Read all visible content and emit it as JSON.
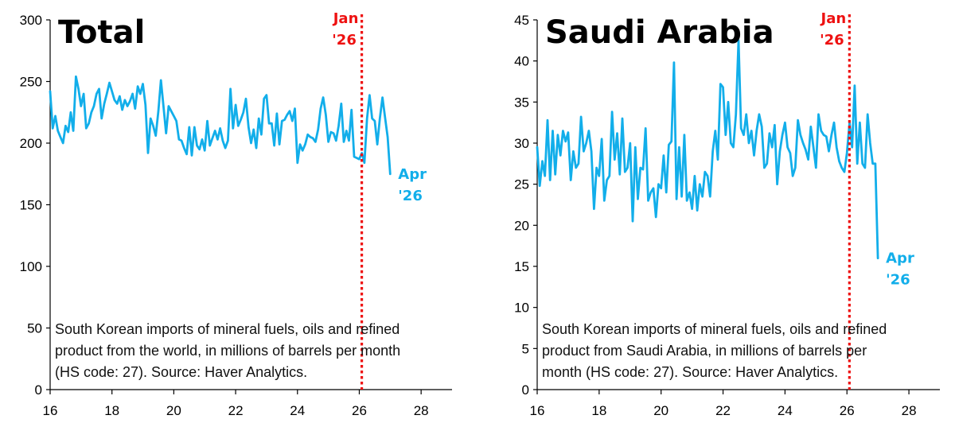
{
  "colors": {
    "series": "#12aeea",
    "marker": "#ee1111",
    "axis": "#000000"
  },
  "chart_data": [
    {
      "type": "line",
      "title": "Total",
      "xlabel": "",
      "ylabel": "",
      "xlim": [
        16,
        29
      ],
      "ylim": [
        0,
        300
      ],
      "xticks": [
        16,
        18,
        20,
        22,
        24,
        26,
        28
      ],
      "yticks": [
        0,
        50,
        100,
        150,
        200,
        250,
        300
      ],
      "grid": false,
      "vline": {
        "x": 26.08,
        "label_line1": "Jan",
        "label_line2": "'26"
      },
      "end_label": {
        "line1": "Apr",
        "line2": "'26"
      },
      "note_lines": [
        "South Korean imports of mineral fuels, oils and refined",
        "product from the world, in millions of barrels per month",
        "(HS code: 27). Source: Haver Analytics."
      ],
      "series": [
        {
          "x_start": 16.0,
          "x_step": 0.08333,
          "values": [
            242,
            212,
            222,
            210,
            205,
            200,
            214,
            209,
            225,
            210,
            254,
            244,
            230,
            240,
            212,
            216,
            225,
            230,
            240,
            244,
            220,
            232,
            240,
            249,
            242,
            235,
            232,
            238,
            227,
            235,
            230,
            234,
            240,
            228,
            246,
            240,
            248,
            231,
            192,
            220,
            214,
            206,
            226,
            251,
            230,
            208,
            230,
            226,
            222,
            218,
            203,
            202,
            196,
            191,
            213,
            190,
            213,
            198,
            195,
            203,
            194,
            218,
            198,
            204,
            210,
            203,
            212,
            202,
            196,
            202,
            244,
            212,
            231,
            214,
            219,
            225,
            236,
            213,
            200,
            211,
            196,
            220,
            207,
            236,
            239,
            216,
            216,
            198,
            224,
            199,
            218,
            219,
            223,
            226,
            218,
            228,
            184,
            199,
            194,
            199,
            207,
            205,
            204,
            201,
            211,
            228,
            237,
            223,
            201,
            209,
            208,
            202,
            214,
            232,
            201,
            210,
            202,
            227,
            189,
            188,
            187,
            192,
            184,
            220,
            239,
            220,
            218,
            199,
            220,
            237,
            221,
            205,
            175
          ]
        }
      ]
    },
    {
      "type": "line",
      "title": "Saudi Arabia",
      "xlabel": "",
      "ylabel": "",
      "xlim": [
        16,
        29
      ],
      "ylim": [
        0,
        45
      ],
      "xticks": [
        16,
        18,
        20,
        22,
        24,
        26,
        28
      ],
      "yticks": [
        0,
        5,
        10,
        15,
        20,
        25,
        30,
        35,
        40,
        45
      ],
      "grid": false,
      "vline": {
        "x": 26.08,
        "label_line1": "Jan",
        "label_line2": "'26"
      },
      "end_label": {
        "line1": "Apr",
        "line2": "'26"
      },
      "note_lines": [
        "South Korean imports of mineral fuels, oils and refined",
        "product from Saudi Arabia, in millions of barrels per",
        "month (HS code: 27). Source: Haver Analytics."
      ],
      "series": [
        {
          "x_start": 16.0,
          "x_step": 0.08333,
          "values": [
            29.5,
            24.8,
            27.8,
            26.0,
            32.8,
            25.5,
            31.5,
            26.2,
            31.0,
            28.5,
            31.5,
            30.2,
            31.3,
            25.5,
            29.0,
            27.0,
            27.5,
            33.2,
            29.0,
            30.0,
            31.5,
            29.0,
            22.0,
            27.0,
            26.0,
            30.5,
            23.0,
            25.5,
            26.0,
            33.8,
            28.0,
            31.2,
            26.2,
            33.0,
            26.5,
            27.0,
            30.0,
            20.5,
            29.5,
            23.2,
            27.0,
            26.8,
            31.8,
            23.0,
            24.0,
            24.5,
            21.0,
            25.0,
            24.5,
            28.5,
            24.0,
            29.8,
            30.2,
            39.8,
            23.2,
            29.5,
            23.5,
            31.0,
            23.0,
            24.0,
            22.0,
            26.0,
            21.8,
            25.0,
            23.5,
            26.5,
            26.0,
            23.5,
            29.0,
            31.5,
            28.0,
            37.2,
            36.8,
            31.0,
            35.0,
            30.0,
            29.5,
            33.5,
            42.5,
            31.8,
            31.0,
            33.5,
            30.0,
            31.5,
            28.5,
            31.5,
            33.5,
            32.0,
            27.0,
            27.5,
            31.2,
            29.5,
            32.2,
            25.0,
            29.0,
            31.0,
            32.5,
            29.5,
            28.8,
            26.0,
            27.0,
            32.8,
            31.0,
            30.0,
            29.2,
            28.0,
            32.0,
            29.5,
            27.0,
            33.5,
            31.5,
            31.0,
            30.8,
            29.0,
            31.0,
            32.5,
            29.5,
            27.8,
            27.0,
            26.5,
            28.8,
            32.5,
            29.5,
            37.0,
            27.5,
            32.5,
            27.5,
            27.0,
            33.5,
            30.0,
            27.5,
            27.5,
            16.0
          ]
        }
      ]
    }
  ]
}
